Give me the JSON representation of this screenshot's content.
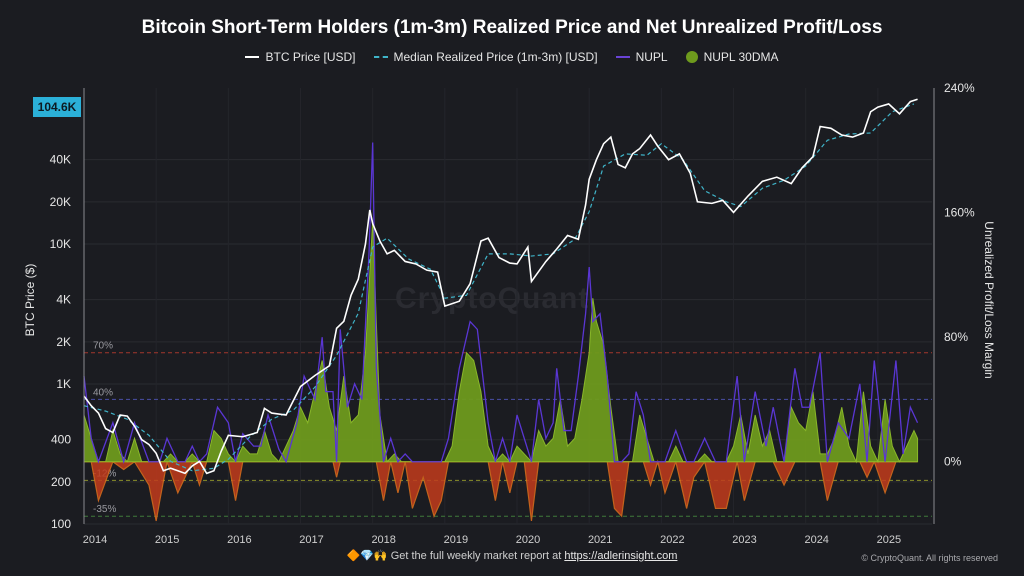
{
  "header": {
    "title": "Bitcoin Short-Term Holders (1m-3m) Realized Price and Net Unrealized Profit/Loss"
  },
  "legend": {
    "btc_price": "BTC Price [USD]",
    "median_realized": "Median Realized Price (1m-3m) [USD]",
    "nupl": "NUPL",
    "nupl_30dma": "NUPL 30DMA"
  },
  "badge": {
    "current_price": "104.6K"
  },
  "watermark": "CryptoQuant",
  "footer": {
    "text": "Get the full weekly market report at",
    "link": "https://adlerinsight.com",
    "emoji": "🔶💎🙌",
    "copyright": "© CryptoQuant. All rights reserved"
  },
  "colors": {
    "background": "#1b1c21",
    "btc_price": "#ffffff",
    "median_realized": "#3fb4c9",
    "nupl": "#5a36d4",
    "nupl_30dma_positive": "#6e9a1d",
    "nupl_negative": "#c23b1c",
    "nupl_negative_edge": "#e0701c",
    "badge": "#2bb0d8"
  },
  "chart_data": {
    "type": "line",
    "title": "Bitcoin Short-Term Holders (1m-3m) Realized Price and Net Unrealized Profit/Loss",
    "ylabel": "BTC Price ($)",
    "y2label": "Unrealized Profit/Loss Margin",
    "y_scale": "log",
    "ylim": [
      100,
      130000
    ],
    "y_ticks": [
      100,
      200,
      400,
      1000,
      2000,
      4000,
      10000,
      20000,
      40000
    ],
    "y_tick_labels": [
      "100",
      "200",
      "400",
      "1K",
      "2K",
      "4K",
      "10K",
      "20K",
      "40K"
    ],
    "y2lim": [
      -0.4,
      2.4
    ],
    "y2_ticks": [
      0,
      0.8,
      1.6,
      2.4
    ],
    "y2_tick_labels": [
      "0%",
      "80%",
      "160%",
      "240%"
    ],
    "x_ticks": [
      2014,
      2015,
      2016,
      2017,
      2018,
      2019,
      2020,
      2021,
      2022,
      2023,
      2024,
      2025
    ],
    "xlim": [
      2014,
      2025.75
    ],
    "reference_lines": [
      {
        "label": "70%",
        "value": 0.7,
        "color": "#a3372c"
      },
      {
        "label": "40%",
        "value": 0.4,
        "color": "#4a4fa6"
      },
      {
        "label": "-12%",
        "value": -0.12,
        "color": "#8b8f2a"
      },
      {
        "label": "-35%",
        "value": -0.35,
        "color": "#3f7a3a"
      }
    ],
    "series": [
      {
        "name": "BTC Price [USD]",
        "x": [
          2014.0,
          2014.1,
          2014.2,
          2014.3,
          2014.4,
          2014.5,
          2014.6,
          2014.7,
          2014.8,
          2014.9,
          2015.0,
          2015.1,
          2015.2,
          2015.3,
          2015.4,
          2015.5,
          2015.6,
          2015.7,
          2015.8,
          2015.9,
          2016.0,
          2016.2,
          2016.4,
          2016.5,
          2016.6,
          2016.8,
          2017.0,
          2017.2,
          2017.4,
          2017.5,
          2017.6,
          2017.7,
          2017.8,
          2017.9,
          2017.96,
          2018.0,
          2018.1,
          2018.2,
          2018.3,
          2018.45,
          2018.6,
          2018.75,
          2018.9,
          2019.0,
          2019.2,
          2019.35,
          2019.5,
          2019.6,
          2019.75,
          2019.9,
          2020.0,
          2020.15,
          2020.2,
          2020.4,
          2020.55,
          2020.7,
          2020.85,
          2020.95,
          2021.0,
          2021.1,
          2021.2,
          2021.3,
          2021.4,
          2021.5,
          2021.6,
          2021.7,
          2021.85,
          2021.95,
          2022.1,
          2022.25,
          2022.4,
          2022.5,
          2022.7,
          2022.85,
          2023.0,
          2023.2,
          2023.4,
          2023.6,
          2023.8,
          2023.95,
          2024.1,
          2024.2,
          2024.35,
          2024.5,
          2024.65,
          2024.8,
          2024.9,
          2025.0,
          2025.15,
          2025.3,
          2025.45,
          2025.55
        ],
        "y": [
          820,
          700,
          620,
          480,
          450,
          600,
          590,
          500,
          400,
          370,
          320,
          240,
          250,
          240,
          230,
          260,
          280,
          230,
          240,
          330,
          430,
          420,
          450,
          670,
          620,
          600,
          960,
          1150,
          1350,
          2500,
          2800,
          4300,
          5600,
          10000,
          17500,
          14000,
          10500,
          8500,
          9000,
          7500,
          7200,
          6500,
          6300,
          3600,
          3900,
          5200,
          10500,
          11000,
          8000,
          7300,
          7200,
          9500,
          5400,
          7500,
          9200,
          11500,
          10800,
          19000,
          29000,
          40000,
          52000,
          58000,
          37000,
          35000,
          44000,
          48000,
          60000,
          50000,
          40000,
          44000,
          32000,
          20000,
          19500,
          20500,
          16800,
          22000,
          28000,
          30000,
          27000,
          35000,
          42000,
          69000,
          67000,
          60000,
          58000,
          62000,
          88000,
          95000,
          100000,
          85000,
          104000,
          108000
        ]
      },
      {
        "name": "Median Realized Price (1m-3m) [USD]",
        "x": [
          2014.0,
          2014.3,
          2014.6,
          2014.9,
          2015.2,
          2015.5,
          2015.8,
          2016.0,
          2016.3,
          2016.6,
          2016.9,
          2017.2,
          2017.5,
          2017.8,
          2018.0,
          2018.2,
          2018.5,
          2018.8,
          2019.0,
          2019.3,
          2019.6,
          2019.9,
          2020.2,
          2020.5,
          2020.8,
          2021.0,
          2021.2,
          2021.5,
          2021.8,
          2022.0,
          2022.3,
          2022.6,
          2022.9,
          2023.1,
          2023.4,
          2023.7,
          2024.0,
          2024.3,
          2024.6,
          2024.9,
          2025.2,
          2025.5
        ],
        "y": [
          700,
          640,
          560,
          430,
          280,
          240,
          250,
          290,
          420,
          560,
          650,
          950,
          1600,
          3200,
          9500,
          11000,
          7800,
          6600,
          4100,
          4300,
          8500,
          8500,
          8200,
          8500,
          10800,
          17000,
          36000,
          44000,
          43000,
          52000,
          40000,
          24000,
          20000,
          18500,
          25000,
          28500,
          36000,
          55000,
          61000,
          62000,
          88000,
          100000
        ]
      },
      {
        "name": "NUPL",
        "x": [
          2014.0,
          2014.1,
          2014.2,
          2014.4,
          2014.55,
          2014.7,
          2014.9,
          2015.0,
          2015.05,
          2015.15,
          2015.3,
          2015.4,
          2015.5,
          2015.6,
          2015.7,
          2015.85,
          2016.0,
          2016.1,
          2016.2,
          2016.35,
          2016.45,
          2016.55,
          2016.7,
          2016.8,
          2016.95,
          2017.05,
          2017.2,
          2017.3,
          2017.35,
          2017.45,
          2017.5,
          2017.55,
          2017.65,
          2017.75,
          2017.85,
          2017.95,
          2018.0,
          2018.05,
          2018.15,
          2018.25,
          2018.35,
          2018.45,
          2018.55,
          2018.7,
          2018.85,
          2018.95,
          2019.05,
          2019.2,
          2019.35,
          2019.45,
          2019.5,
          2019.6,
          2019.7,
          2019.8,
          2019.9,
          2020.0,
          2020.1,
          2020.2,
          2020.3,
          2020.4,
          2020.5,
          2020.55,
          2020.65,
          2020.75,
          2020.85,
          2020.95,
          2021.0,
          2021.05,
          2021.15,
          2021.25,
          2021.35,
          2021.45,
          2021.55,
          2021.65,
          2021.75,
          2021.85,
          2021.95,
          2022.05,
          2022.2,
          2022.35,
          2022.45,
          2022.6,
          2022.75,
          2022.9,
          2023.05,
          2023.15,
          2023.3,
          2023.45,
          2023.55,
          2023.7,
          2023.85,
          2023.95,
          2024.05,
          2024.2,
          2024.3,
          2024.45,
          2024.6,
          2024.75,
          2024.85,
          2024.95,
          2025.1,
          2025.25,
          2025.35,
          2025.45,
          2025.55
        ],
        "y": [
          0.55,
          0.15,
          -0.25,
          0.25,
          -0.05,
          0.25,
          -0.15,
          -0.38,
          -0.25,
          0.15,
          -0.2,
          -0.1,
          0.1,
          -0.15,
          0.05,
          0.35,
          0.25,
          -0.25,
          0.18,
          0.1,
          0.1,
          0.3,
          0.08,
          0.0,
          0.25,
          0.55,
          0.4,
          0.8,
          0.45,
          0.45,
          -0.1,
          0.85,
          0.35,
          0.5,
          0.4,
          1.35,
          2.05,
          0.6,
          -0.25,
          0.15,
          -0.2,
          0.05,
          -0.3,
          -0.1,
          -0.35,
          -0.25,
          0.15,
          0.6,
          0.9,
          0.85,
          0.65,
          0.25,
          -0.25,
          0.15,
          -0.2,
          0.3,
          0.15,
          -0.38,
          0.4,
          0.15,
          0.25,
          0.6,
          0.2,
          0.2,
          0.55,
          0.95,
          1.25,
          0.9,
          0.95,
          0.55,
          -0.3,
          -0.35,
          0.05,
          0.45,
          0.3,
          -0.15,
          0.0,
          -0.2,
          0.2,
          -0.3,
          -0.1,
          0.15,
          -0.3,
          -0.3,
          0.55,
          -0.25,
          0.45,
          0.1,
          0.35,
          -0.15,
          0.6,
          0.35,
          0.35,
          0.7,
          -0.25,
          0.25,
          0.15,
          0.5,
          -0.1,
          0.65,
          -0.2,
          0.65,
          0.05,
          0.35,
          0.25
        ]
      },
      {
        "name": "NUPL 30DMA",
        "x": [
          2014.0,
          2014.1,
          2014.2,
          2014.3,
          2014.4,
          2014.5,
          2014.6,
          2014.7,
          2014.8,
          2014.9,
          2015.0,
          2015.1,
          2015.2,
          2015.3,
          2015.4,
          2015.5,
          2015.6,
          2015.7,
          2015.8,
          2015.9,
          2016.0,
          2016.1,
          2016.2,
          2016.3,
          2016.4,
          2016.5,
          2016.6,
          2016.7,
          2016.8,
          2016.9,
          2017.0,
          2017.1,
          2017.2,
          2017.3,
          2017.4,
          2017.5,
          2017.6,
          2017.7,
          2017.8,
          2017.9,
          2018.0,
          2018.05,
          2018.1,
          2018.2,
          2018.3,
          2018.4,
          2018.5,
          2018.6,
          2018.7,
          2018.8,
          2018.9,
          2019.0,
          2019.1,
          2019.2,
          2019.3,
          2019.4,
          2019.5,
          2019.6,
          2019.7,
          2019.8,
          2019.9,
          2020.0,
          2020.1,
          2020.2,
          2020.3,
          2020.4,
          2020.5,
          2020.6,
          2020.7,
          2020.8,
          2020.9,
          2021.0,
          2021.05,
          2021.1,
          2021.2,
          2021.3,
          2021.4,
          2021.5,
          2021.6,
          2021.7,
          2021.8,
          2021.9,
          2022.0,
          2022.1,
          2022.2,
          2022.3,
          2022.4,
          2022.5,
          2022.6,
          2022.7,
          2022.8,
          2022.9,
          2023.0,
          2023.1,
          2023.2,
          2023.3,
          2023.4,
          2023.5,
          2023.6,
          2023.7,
          2023.8,
          2023.9,
          2024.0,
          2024.1,
          2024.2,
          2024.3,
          2024.4,
          2024.5,
          2024.6,
          2024.7,
          2024.8,
          2024.9,
          2025.0,
          2025.1,
          2025.2,
          2025.3,
          2025.4,
          2025.5,
          2025.55
        ],
        "y": [
          0.3,
          0.15,
          -0.15,
          -0.1,
          0.2,
          0.05,
          -0.05,
          0.15,
          -0.05,
          -0.15,
          -0.25,
          -0.28,
          0.05,
          -0.12,
          -0.05,
          0.05,
          -0.1,
          0.0,
          0.2,
          0.15,
          0.05,
          -0.2,
          0.1,
          0.05,
          0.05,
          0.2,
          0.05,
          -0.02,
          0.1,
          0.2,
          0.35,
          0.25,
          0.45,
          0.65,
          0.35,
          0.2,
          0.55,
          0.25,
          0.3,
          0.7,
          1.55,
          0.9,
          0.3,
          -0.05,
          0.05,
          -0.1,
          -0.2,
          -0.05,
          -0.15,
          -0.25,
          -0.3,
          -0.1,
          0.1,
          0.45,
          0.7,
          0.65,
          0.45,
          0.1,
          -0.15,
          0.05,
          -0.1,
          0.1,
          0.05,
          -0.25,
          0.2,
          0.1,
          0.15,
          0.4,
          0.1,
          0.15,
          0.4,
          0.7,
          1.05,
          0.9,
          0.75,
          0.35,
          -0.2,
          -0.15,
          0.0,
          0.3,
          0.15,
          -0.05,
          -0.05,
          -0.1,
          0.1,
          -0.15,
          -0.15,
          -0.05,
          0.05,
          -0.1,
          -0.2,
          -0.2,
          0.1,
          0.3,
          0.05,
          0.3,
          0.1,
          0.2,
          0.0,
          -0.05,
          0.35,
          0.25,
          0.2,
          0.45,
          0.05,
          0.05,
          0.15,
          0.35,
          0.1,
          -0.05,
          0.45,
          0.1,
          -0.05,
          0.4,
          0.1,
          -0.1,
          0.1,
          0.2,
          0.15
        ]
      }
    ]
  }
}
